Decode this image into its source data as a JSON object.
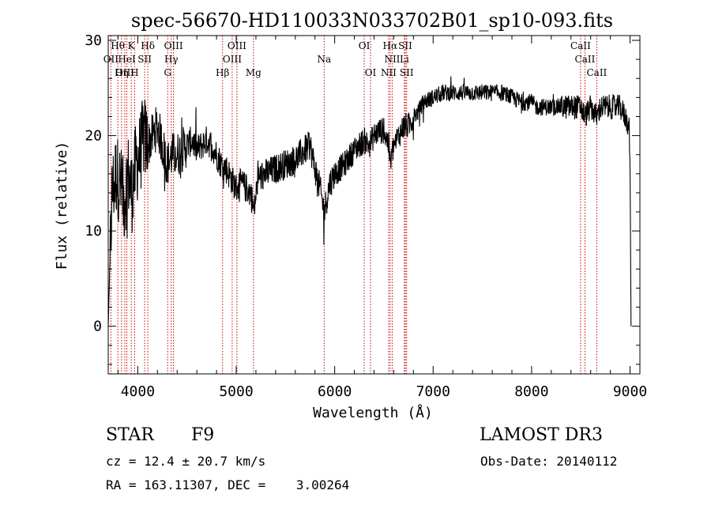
{
  "title": "spec-56670-HD110033N033702B01_sp10-093.fits",
  "info": {
    "object_class": "STAR",
    "subclass": "F9",
    "survey": "LAMOST DR3",
    "cz": "cz = 12.4 ± 20.7 km/s",
    "obs_date": "Obs-Date: 20140112",
    "radec": "RA = 163.11307, DEC =    3.00264"
  },
  "chart_data": {
    "type": "line",
    "title": "spec-56670-HD110033N033702B01_sp10-093.fits",
    "xlabel": "Wavelength (Å)",
    "ylabel": "Flux (relative)",
    "xlim": [
      3700,
      9100
    ],
    "ylim": [
      -5,
      30.5
    ],
    "xticks": [
      4000,
      5000,
      6000,
      7000,
      8000,
      9000
    ],
    "yticks": [
      0,
      10,
      20,
      30
    ],
    "line_color": "#000000",
    "marker_color": "#cc0000",
    "grid": false,
    "spectrum_anchors": {
      "x": [
        3700,
        3715,
        3740,
        3780,
        3820,
        3860,
        3900,
        3940,
        3980,
        4020,
        4060,
        4100,
        4150,
        4200,
        4250,
        4300,
        4350,
        4400,
        4450,
        4500,
        4550,
        4600,
        4650,
        4700,
        4750,
        4800,
        4850,
        4900,
        4950,
        5000,
        5050,
        5100,
        5150,
        5180,
        5220,
        5300,
        5400,
        5500,
        5600,
        5700,
        5750,
        5800,
        5850,
        5893,
        5950,
        6000,
        6100,
        6200,
        6300,
        6350,
        6400,
        6450,
        6500,
        6550,
        6563,
        6600,
        6650,
        6700,
        6750,
        6800,
        6850,
        6900,
        7000,
        7100,
        7200,
        7300,
        7400,
        7500,
        7600,
        7700,
        7800,
        7900,
        8000,
        8050,
        8100,
        8200,
        8300,
        8400,
        8500,
        8542,
        8600,
        8662,
        8700,
        8800,
        8900,
        8950,
        8990,
        9000,
        9010
      ],
      "y": [
        0,
        6,
        14,
        16,
        15,
        13,
        16,
        14,
        17,
        18,
        20,
        19,
        20,
        21,
        19,
        17,
        18,
        18,
        18.5,
        19,
        19.5,
        18.5,
        19,
        19.5,
        19,
        18,
        17,
        16.5,
        15.5,
        14.5,
        15,
        14.5,
        14,
        12,
        15.5,
        16,
        16.5,
        17,
        17.5,
        18.5,
        19,
        16.5,
        14.5,
        12,
        15,
        16,
        17,
        18.5,
        19.5,
        19,
        20,
        20.5,
        20.5,
        19,
        17,
        19,
        20,
        21,
        21,
        22,
        22.5,
        23.5,
        24,
        24.5,
        24.5,
        24.5,
        24.5,
        24.5,
        24.5,
        24.5,
        24,
        23.5,
        23.5,
        23,
        23,
        23,
        23,
        23,
        23,
        22,
        23,
        22,
        23,
        23,
        23,
        22,
        21,
        17,
        0
      ]
    },
    "lines_upper": [
      {
        "label": "Hθ",
        "x": 3797
      },
      {
        "label": "K",
        "x": 3934
      },
      {
        "label": "Hδ",
        "x": 4102
      },
      {
        "label": "OIII",
        "x": 4363
      },
      {
        "label": "OIII",
        "x": 5007
      },
      {
        "label": "OI",
        "x": 6300
      },
      {
        "label": "Hα",
        "x": 6563
      },
      {
        "label": "SII",
        "x": 6717
      },
      {
        "label": "CaII",
        "x": 8498
      }
    ],
    "lines_middle": [
      {
        "label": "OII",
        "x": 3727
      },
      {
        "label": "HeI",
        "x": 3889
      },
      {
        "label": "SII",
        "x": 4070
      },
      {
        "label": "Hγ",
        "x": 4340
      },
      {
        "label": "OIII",
        "x": 4959
      },
      {
        "label": "Na",
        "x": 5893
      },
      {
        "label": "NII",
        "x": 6584
      },
      {
        "label": "Li",
        "x": 6708
      },
      {
        "label": "CaII",
        "x": 8542
      }
    ],
    "lines_lower": [
      {
        "label": "OIII",
        "x": 3869
      },
      {
        "label": "Hη",
        "x": 3835
      },
      {
        "label": "H",
        "x": 3968
      },
      {
        "label": "G",
        "x": 4304
      },
      {
        "label": "Hβ",
        "x": 4861
      },
      {
        "label": "Mg",
        "x": 5175
      },
      {
        "label": "OI",
        "x": 6364
      },
      {
        "label": "NII",
        "x": 6548
      },
      {
        "label": "SII",
        "x": 6731
      },
      {
        "label": "CaII",
        "x": 8662
      }
    ]
  }
}
